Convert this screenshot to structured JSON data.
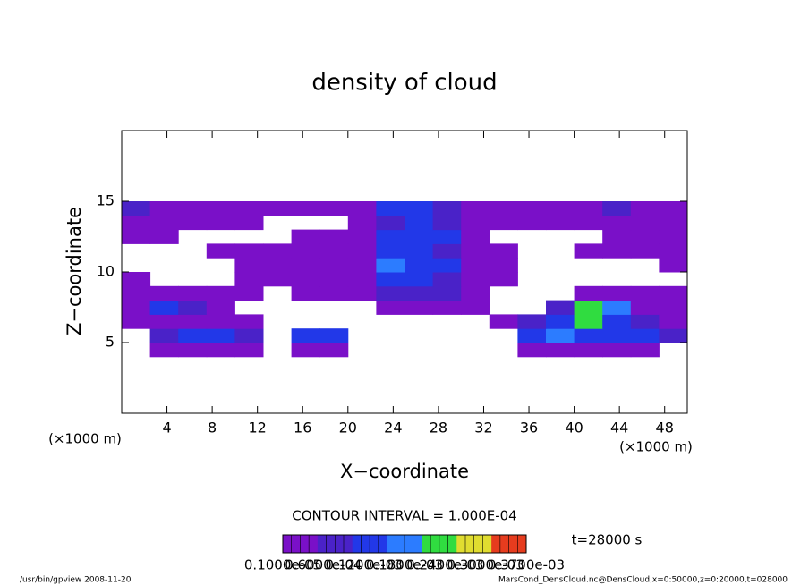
{
  "chart_data": {
    "type": "heatmap",
    "title": "density of cloud",
    "xlabel": "X−coordinate",
    "ylabel": "Z−coordinate",
    "xunit": "(×1000 m)",
    "yunit": "(×1000 m)",
    "xlim": [
      0,
      50
    ],
    "ylim": [
      0,
      20
    ],
    "xticks": [
      4,
      8,
      12,
      16,
      20,
      24,
      28,
      32,
      36,
      40,
      44,
      48
    ],
    "yticks": [
      5,
      10,
      15
    ],
    "xbins": [
      0,
      2.5,
      5,
      7.5,
      10,
      12.5,
      15,
      17.5,
      20,
      22.5,
      25,
      27.5,
      30,
      32.5,
      35,
      37.5,
      40,
      42.5,
      45,
      47.5,
      50
    ],
    "ybins": [
      4,
      5,
      6,
      7,
      8,
      9,
      10,
      11,
      12,
      13,
      14,
      15
    ],
    "z": [
      [
        0,
        2e-05,
        2e-05,
        2e-05,
        2e-05,
        0,
        2e-05,
        2e-05,
        0,
        0,
        0,
        0,
        0,
        0,
        2e-05,
        2e-05,
        2e-05,
        2e-05,
        2e-05,
        0
      ],
      [
        0,
        4e-05,
        6e-05,
        6e-05,
        4e-05,
        0,
        6e-05,
        6e-05,
        0,
        0,
        0,
        0,
        0,
        0,
        6e-05,
        0.0001,
        6e-05,
        6e-05,
        6e-05,
        4e-05
      ],
      [
        2e-05,
        2e-05,
        2e-05,
        2e-05,
        2e-05,
        0,
        0,
        0,
        0,
        0,
        0,
        0,
        0,
        2e-05,
        4e-05,
        6e-05,
        0.00018,
        6e-05,
        4e-05,
        2e-05
      ],
      [
        2e-05,
        6e-05,
        4e-05,
        2e-05,
        0,
        0,
        0,
        0,
        0,
        2e-05,
        2e-05,
        2e-05,
        2e-05,
        0,
        0,
        4e-05,
        0.00018,
        0.0001,
        2e-05,
        2e-05
      ],
      [
        2e-05,
        2e-05,
        2e-05,
        2e-05,
        2e-05,
        0,
        2e-05,
        2e-05,
        2e-05,
        4e-05,
        4e-05,
        4e-05,
        2e-05,
        0,
        0,
        0,
        2e-05,
        2e-05,
        2e-05,
        2e-05
      ],
      [
        2e-05,
        0,
        0,
        0,
        2e-05,
        2e-05,
        2e-05,
        2e-05,
        2e-05,
        6e-05,
        6e-05,
        4e-05,
        2e-05,
        2e-05,
        0,
        0,
        0,
        0,
        0,
        0
      ],
      [
        0,
        0,
        0,
        0,
        2e-05,
        2e-05,
        2e-05,
        2e-05,
        2e-05,
        0.0001,
        6e-05,
        6e-05,
        2e-05,
        2e-05,
        0,
        0,
        0,
        0,
        0,
        2e-05
      ],
      [
        0,
        0,
        0,
        2e-05,
        2e-05,
        2e-05,
        2e-05,
        2e-05,
        2e-05,
        6e-05,
        6e-05,
        4e-05,
        2e-05,
        2e-05,
        0,
        0,
        2e-05,
        2e-05,
        2e-05,
        2e-05
      ],
      [
        2e-05,
        2e-05,
        0,
        0,
        0,
        0,
        2e-05,
        2e-05,
        2e-05,
        6e-05,
        6e-05,
        6e-05,
        2e-05,
        0,
        0,
        0,
        0,
        2e-05,
        2e-05,
        2e-05
      ],
      [
        2e-05,
        2e-05,
        2e-05,
        2e-05,
        2e-05,
        0,
        0,
        0,
        2e-05,
        4e-05,
        6e-05,
        4e-05,
        2e-05,
        2e-05,
        2e-05,
        2e-05,
        2e-05,
        2e-05,
        2e-05,
        2e-05
      ],
      [
        4e-05,
        2e-05,
        2e-05,
        2e-05,
        2e-05,
        2e-05,
        2e-05,
        2e-05,
        2e-05,
        6e-05,
        6e-05,
        4e-05,
        2e-05,
        2e-05,
        2e-05,
        2e-05,
        2e-05,
        4e-05,
        2e-05,
        2e-05
      ]
    ],
    "levels": [
      1e-05,
      3e-05,
      5e-05,
      8e-05,
      0.00015,
      0.00022,
      0.0003
    ],
    "colors": [
      "#7a10c8",
      "#4a22c8",
      "#2238e8",
      "#2c7cff",
      "#30dc40",
      "#e0dc30",
      "#e63c1e"
    ],
    "contour_interval": "CONTOUR INTERVAL = 1.000E-04",
    "time": "t=28000 s",
    "colorbar_labels": [
      "0.1000e-05",
      "0.6000e-04",
      "0.1200e-03",
      "0.1800e-03",
      "0.2400e-03",
      "0.3000e-03",
      "0.3700e-03"
    ],
    "footer_left": "/usr/bin/gpview  2008-11-20",
    "footer_right": "MarsCond_DensCloud.nc@DensCloud,x=0:50000,z=0:20000,t=028000"
  }
}
